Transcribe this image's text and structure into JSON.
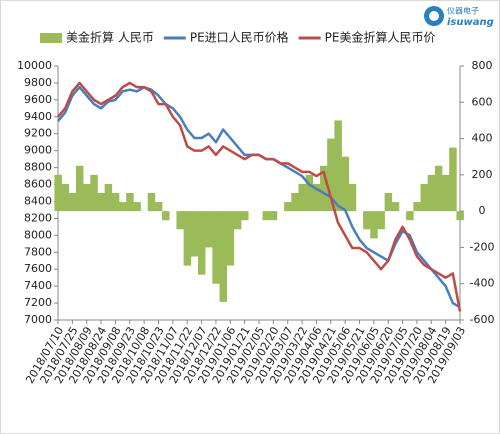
{
  "chart_data": {
    "type": "combo",
    "logo": {
      "name": "仪器电子",
      "sub": "isuwang"
    },
    "categories": [
      "2018/07/10",
      null,
      "2018/07/25",
      null,
      "2018/08/09",
      null,
      "2018/08/24",
      null,
      "2018/09/08",
      null,
      "2018/09/23",
      null,
      "2018/10/08",
      null,
      "2018/10/23",
      null,
      "2018/11/07",
      null,
      "2018/11/22",
      null,
      "2018/12/07",
      null,
      "2018/12/22",
      null,
      "2019/01/06",
      null,
      "2019/01/21",
      null,
      "2019/02/05",
      null,
      "2019/02/20",
      null,
      "2019/03/07",
      null,
      "2019/03/22",
      null,
      "2019/04/06",
      null,
      "2019/04/21",
      null,
      "2019/05/06",
      null,
      "2019/05/21",
      null,
      "2019/06/05",
      null,
      "2019/06/20",
      null,
      "2019/07/05",
      null,
      "2019/07/20",
      null,
      "2019/08/04",
      null,
      "2019/08/19",
      null,
      "2019/09/03"
    ],
    "series": [
      {
        "name": "美金折算 人民币",
        "type": "area",
        "axis": "y2",
        "color": "#9bbb59",
        "values": [
          200,
          150,
          100,
          250,
          150,
          200,
          100,
          150,
          100,
          50,
          100,
          50,
          0,
          100,
          50,
          -50,
          0,
          -100,
          -300,
          -250,
          -350,
          -200,
          -400,
          -500,
          -300,
          -100,
          -50,
          0,
          0,
          -50,
          -50,
          0,
          50,
          100,
          150,
          200,
          150,
          250,
          400,
          500,
          300,
          150,
          0,
          -100,
          -150,
          -100,
          100,
          50,
          0,
          -50,
          50,
          150,
          200,
          250,
          200,
          350,
          -50
        ]
      },
      {
        "name": "PE进口人民币价格",
        "type": "line",
        "color": "#4a7ebb",
        "values": [
          9350,
          9450,
          9650,
          9750,
          9650,
          9550,
          9500,
          9580,
          9600,
          9700,
          9720,
          9700,
          9750,
          9720,
          9650,
          9550,
          9500,
          9400,
          9250,
          9150,
          9150,
          9200,
          9100,
          9250,
          9150,
          9050,
          8950,
          8950,
          8950,
          8900,
          8900,
          8850,
          8800,
          8750,
          8700,
          8600,
          8550,
          8500,
          8450,
          8350,
          8300,
          8100,
          7950,
          7850,
          7800,
          7750,
          7700,
          7900,
          8050,
          8000,
          7800,
          7700,
          7600,
          7500,
          7400,
          7200,
          7150
        ]
      },
      {
        "name": "PE美金折算人民币价",
        "type": "line",
        "color": "#be4b48",
        "values": [
          9400,
          9500,
          9700,
          9800,
          9700,
          9600,
          9550,
          9600,
          9650,
          9750,
          9800,
          9750,
          9750,
          9700,
          9550,
          9550,
          9400,
          9300,
          9050,
          9000,
          9000,
          9050,
          8950,
          9050,
          9000,
          8950,
          8900,
          8950,
          8950,
          8900,
          8900,
          8850,
          8850,
          8800,
          8750,
          8750,
          8700,
          8750,
          8450,
          8150,
          8000,
          7850,
          7850,
          7800,
          7700,
          7600,
          7700,
          7950,
          8100,
          7950,
          7750,
          7650,
          7600,
          7550,
          7500,
          7550,
          7100
        ]
      }
    ],
    "ylim": [
      7000,
      10000
    ],
    "yticks": [
      7000,
      7200,
      7400,
      7600,
      7800,
      8000,
      8200,
      8400,
      8600,
      8800,
      9000,
      9200,
      9400,
      9600,
      9800,
      10000
    ],
    "y2lim": [
      -600,
      800
    ],
    "y2ticks": [
      -600,
      -400,
      -200,
      0,
      200,
      400,
      600,
      800
    ],
    "grid": false,
    "legend": "top"
  }
}
